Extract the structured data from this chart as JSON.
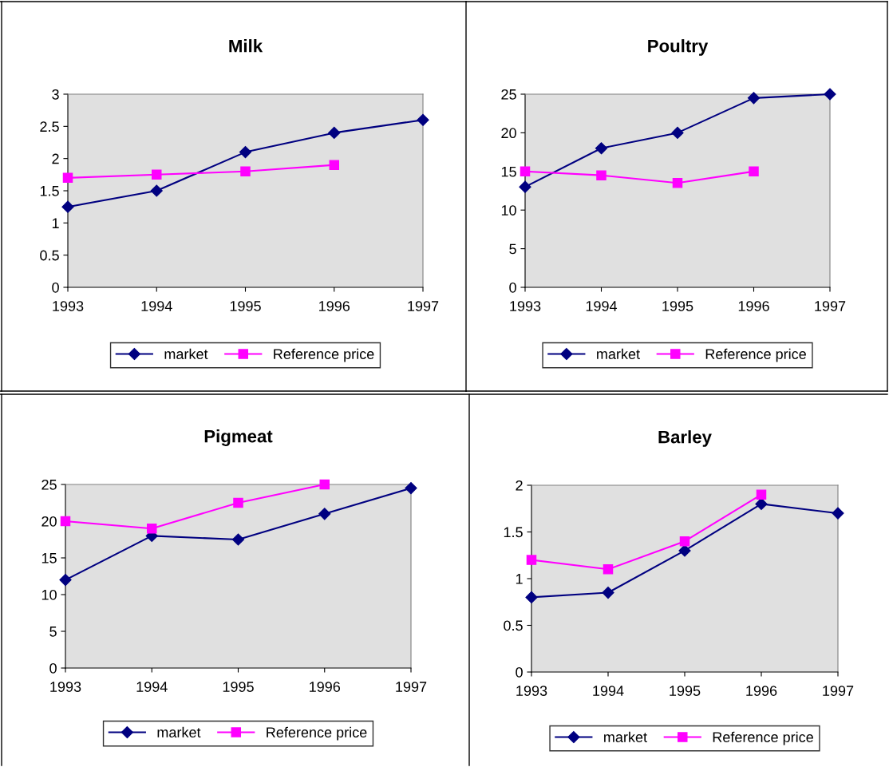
{
  "chart_data": [
    {
      "type": "line",
      "title": "Milk",
      "categories": [
        "1993",
        "1994",
        "1995",
        "1996",
        "1997"
      ],
      "ylim": [
        0,
        3
      ],
      "yticks": [
        0,
        0.5,
        1,
        1.5,
        2,
        2.5,
        3
      ],
      "grid": false,
      "legend": "bottom",
      "series": [
        {
          "name": "market",
          "color": "#000080",
          "marker": "diamond",
          "values": [
            1.25,
            1.5,
            2.1,
            2.4,
            2.6
          ]
        },
        {
          "name": "Reference price",
          "color": "#ff00ff",
          "marker": "square",
          "values": [
            1.7,
            1.75,
            1.8,
            1.9,
            null
          ]
        }
      ]
    },
    {
      "type": "line",
      "title": "Poultry",
      "categories": [
        "1993",
        "1994",
        "1995",
        "1996",
        "1997"
      ],
      "ylim": [
        0,
        25
      ],
      "yticks": [
        0,
        5,
        10,
        15,
        20,
        25
      ],
      "grid": false,
      "legend": "bottom",
      "series": [
        {
          "name": "market",
          "color": "#000080",
          "marker": "diamond",
          "values": [
            13,
            18,
            20,
            24.5,
            25
          ]
        },
        {
          "name": "Reference price",
          "color": "#ff00ff",
          "marker": "square",
          "values": [
            15,
            14.5,
            13.5,
            15,
            null
          ]
        }
      ]
    },
    {
      "type": "line",
      "title": "Pigmeat",
      "categories": [
        "1993",
        "1994",
        "1995",
        "1996",
        "1997"
      ],
      "ylim": [
        0,
        25
      ],
      "yticks": [
        0,
        5,
        10,
        15,
        20,
        25
      ],
      "grid": false,
      "legend": "bottom",
      "series": [
        {
          "name": "market",
          "color": "#000080",
          "marker": "diamond",
          "values": [
            12,
            18,
            17.5,
            21,
            24.5
          ]
        },
        {
          "name": "Reference price",
          "color": "#ff00ff",
          "marker": "square",
          "values": [
            20,
            19,
            22.5,
            25,
            null
          ]
        }
      ]
    },
    {
      "type": "line",
      "title": "Barley",
      "categories": [
        "1993",
        "1994",
        "1995",
        "1996",
        "1997"
      ],
      "ylim": [
        0,
        2
      ],
      "yticks": [
        0,
        0.5,
        1,
        1.5,
        2
      ],
      "grid": false,
      "legend": "bottom",
      "series": [
        {
          "name": "market",
          "color": "#000080",
          "marker": "diamond",
          "values": [
            0.8,
            0.85,
            1.3,
            1.8,
            1.7
          ]
        },
        {
          "name": "Reference price",
          "color": "#ff00ff",
          "marker": "square",
          "values": [
            1.2,
            1.1,
            1.4,
            1.9,
            null
          ]
        }
      ]
    }
  ]
}
